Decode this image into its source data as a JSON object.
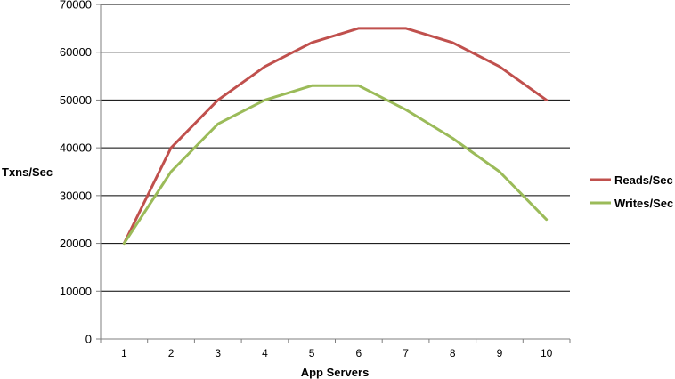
{
  "chart_data": {
    "type": "line",
    "title": "",
    "xlabel": "App Servers",
    "ylabel": "Txns/Sec",
    "x": [
      1,
      2,
      3,
      4,
      5,
      6,
      7,
      8,
      9,
      10
    ],
    "ylim": [
      0,
      70000
    ],
    "yticks": [
      0,
      10000,
      20000,
      30000,
      40000,
      50000,
      60000,
      70000
    ],
    "grid": "horizontal",
    "legend_position": "right",
    "series": [
      {
        "name": "Reads/Sec",
        "color": "#c0504d",
        "values": [
          20000,
          40000,
          50000,
          57000,
          62000,
          65000,
          65000,
          62000,
          57000,
          50000
        ]
      },
      {
        "name": "Writes/Sec",
        "color": "#9bbb59",
        "values": [
          20000,
          35000,
          45000,
          50000,
          53000,
          53000,
          48000,
          42000,
          35000,
          25000
        ]
      }
    ]
  }
}
